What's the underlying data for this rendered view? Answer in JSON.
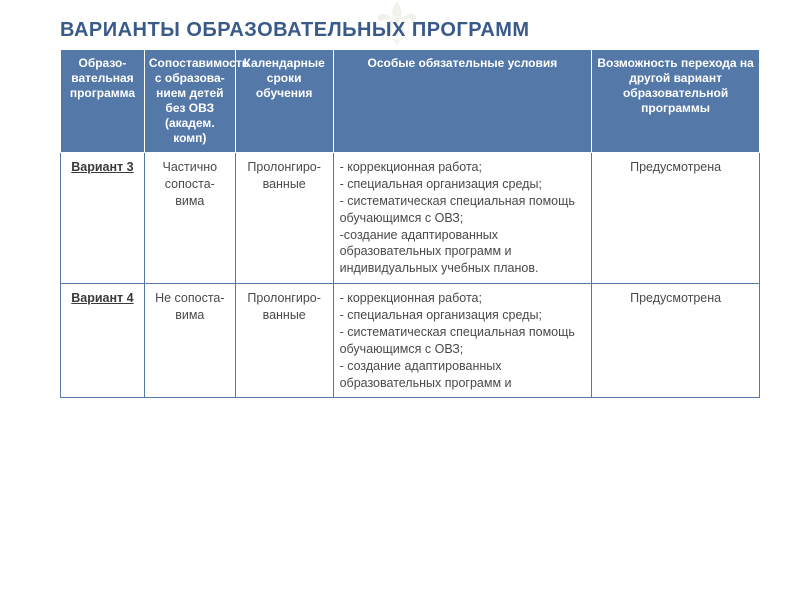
{
  "title": "ВАРИАНТЫ ОБРАЗОВАТЕЛЬНЫХ ПРОГРАММ",
  "colors": {
    "title": "#3a5a8a",
    "header_bg": "#5478a8",
    "header_text": "#ffffff",
    "cell_border": "#5478a8",
    "cell_text": "#4a4a4a",
    "background": "#ffffff"
  },
  "typography": {
    "title_fontsize": 20,
    "header_fontsize": 12,
    "cell_fontsize": 12.5,
    "font_family": "Arial"
  },
  "table": {
    "type": "table",
    "column_widths_pct": [
      12,
      13,
      14,
      37,
      24
    ],
    "columns": [
      "Образо-вательная программа",
      "Сопоставимость с образова-нием детей без ОВЗ (академ. комп)",
      "Календарные сроки обучения",
      "Особые обязательные условия",
      "Возможность перехода на другой вариант образовательной программы"
    ],
    "rows": [
      {
        "variant": "Вариант 3",
        "comparability": "Частично сопоста-вима",
        "timing": "Пролонгиро-ванные",
        "conditions": "- коррекционная работа;\n- специальная организация среды;\n- систематическая специальная помощь обучающимся с ОВЗ;\n-создание адаптированных образовательных программ и индивидуальных учебных планов.",
        "transition": "Предусмотрена"
      },
      {
        "variant": "Вариант 4",
        "comparability": "Не сопоста-вима",
        "timing": "Пролонгиро-ванные",
        "conditions": "- коррекционная работа;\n- специальная организация среды;\n- систематическая специальная помощь обучающимся с ОВЗ;\n- создание адаптированных образовательных программ и",
        "transition": "Предусмотрена"
      }
    ]
  }
}
